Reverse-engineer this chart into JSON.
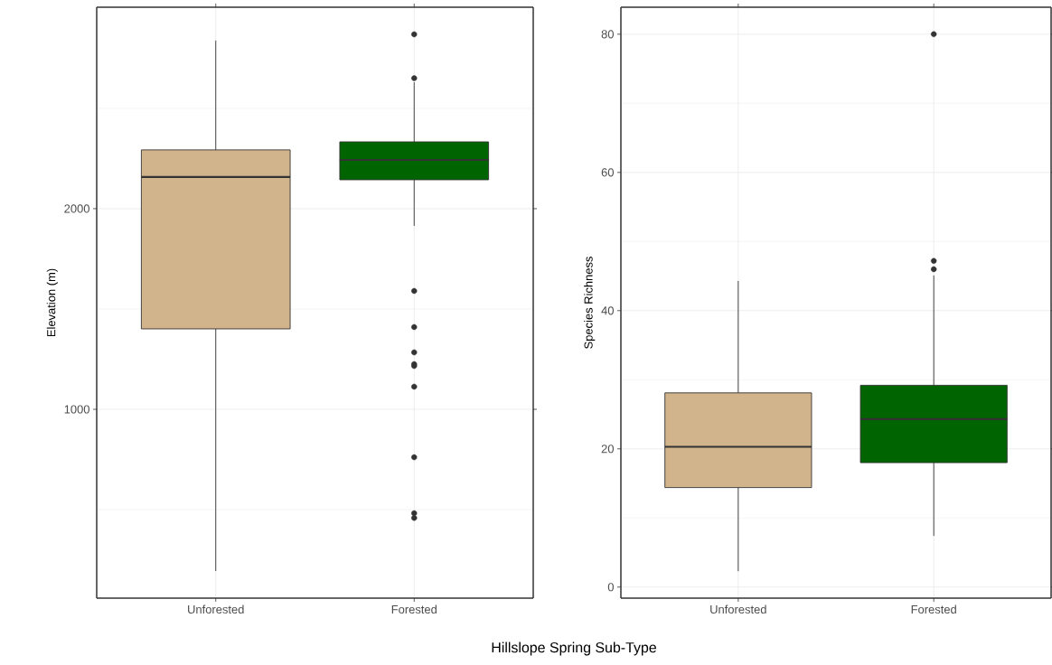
{
  "chart_data": [
    {
      "type": "box",
      "categories": [
        "Unforested",
        "Forested"
      ],
      "ylabel": "Elevation (m)",
      "xlabel": "Hillslope Spring Sub-Type",
      "boxes": [
        {
          "low": 194,
          "q1": 1401,
          "median": 2158,
          "q3": 2293,
          "high": 2838
        },
        {
          "low": 1914,
          "q1": 2144,
          "median": 2243,
          "q3": 2333,
          "high": 2630,
          "outliers": [
            2869,
            2650,
            1590,
            1410,
            1284,
            1225,
            1216,
            1113,
            761,
            482,
            459
          ]
        }
      ],
      "colors": [
        "#d2b48c",
        "#006400"
      ],
      "ylim": [
        59,
        3004
      ],
      "yticks": [
        1000,
        2000
      ],
      "grid": true
    },
    {
      "type": "box",
      "categories": [
        "Unforested",
        "Forested"
      ],
      "ylabel": "Species Richness",
      "boxes": [
        {
          "low": 2.3,
          "q1": 14.4,
          "median": 20.3,
          "q3": 28.1,
          "high": 44.3
        },
        {
          "low": 7.4,
          "q1": 18.0,
          "median": 24.3,
          "q3": 29.2,
          "high": 45.1,
          "outliers": [
            80,
            47.2,
            46.0
          ]
        }
      ],
      "colors": [
        "#d2b48c",
        "#006400"
      ],
      "ylim": [
        -1.6,
        83.9
      ],
      "yticks": [
        0,
        20,
        40,
        60,
        80
      ],
      "grid": true
    }
  ]
}
